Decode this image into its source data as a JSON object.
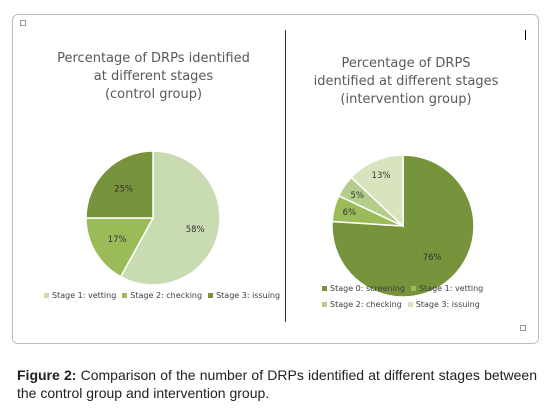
{
  "chart_data": [
    {
      "type": "pie",
      "title_lines": [
        "Percentage of DRPs identified",
        "at different stages",
        "(control group)"
      ],
      "slices": [
        {
          "label": "Stage 1: vetting",
          "value": 58,
          "value_label": "58%",
          "color": "#c9dbb0"
        },
        {
          "label": "Stage 2: checking",
          "value": 17,
          "value_label": "17%",
          "color": "#9bbb59"
        },
        {
          "label": "Stage 3: issuing",
          "value": 25,
          "value_label": "25%",
          "color": "#77933c"
        }
      ],
      "legend_position": "bottom"
    },
    {
      "type": "pie",
      "title_lines": [
        "Percentage of DRPS",
        "identified at different stages",
        "(intervention group)"
      ],
      "slices": [
        {
          "label": "Stage 0: screening",
          "value": 76,
          "value_label": "76%",
          "color": "#77933c"
        },
        {
          "label": "Stage 1: vetting",
          "value": 6,
          "value_label": "6%",
          "color": "#9bbb59"
        },
        {
          "label": "Stage 2: checking",
          "value": 5,
          "value_label": "5%",
          "color": "#b4cd8a"
        },
        {
          "label": "Stage 3: issuing",
          "value": 13,
          "value_label": "13%",
          "color": "#d7e4bd"
        }
      ],
      "legend_position": "bottom"
    }
  ],
  "caption": {
    "label": "Figure 2:",
    "text": "Comparison of the number of DRPs identified at different stages between the control group and intervention group."
  }
}
